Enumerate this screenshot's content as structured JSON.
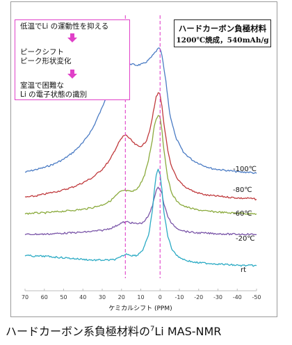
{
  "annotation": {
    "line1": "低温でLi の運動性を抑える",
    "line2": "ピークシフト",
    "line3": "ピーク形状変化",
    "line4": "室温で困難な",
    "line5": "Li の電子状態の識別",
    "arrow_color": "#e040c8"
  },
  "sample": {
    "line1": "ハードカーボン負極材料",
    "line2": "1200℃焼成，540mAh/g"
  },
  "caption": {
    "prefix": "ハードカーボン系負極材料の",
    "mass": "7",
    "suffix": "Li MAS-NMR"
  },
  "chart_data": {
    "type": "line",
    "xlabel": "ケミカルシフト (PPM)",
    "xlim": [
      70,
      -50
    ],
    "xticks": [
      70,
      60,
      50,
      40,
      30,
      20,
      10,
      0,
      -10,
      -20,
      -30,
      -40,
      -50
    ],
    "reference_lines": [
      18,
      0
    ],
    "reference_line_color": "#e040c8",
    "series": [
      {
        "name": "-100℃",
        "color": "#4a7bc4",
        "x": [
          70,
          65,
          60,
          55,
          50,
          45,
          40,
          35,
          30,
          27,
          24,
          21,
          19,
          17,
          15,
          12,
          9,
          7,
          5,
          3,
          1,
          0,
          -1,
          -3,
          -5,
          -8,
          -12,
          -17,
          -22,
          -27,
          -32,
          -37,
          -42,
          -46,
          -50
        ],
        "y": [
          0.05,
          0.07,
          0.09,
          0.12,
          0.16,
          0.22,
          0.3,
          0.42,
          0.6,
          0.74,
          0.86,
          0.94,
          0.97,
          0.98,
          0.97,
          0.96,
          0.97,
          0.99,
          1.02,
          1.06,
          1.1,
          1.1,
          1.04,
          0.82,
          0.55,
          0.35,
          0.22,
          0.15,
          0.11,
          0.08,
          0.07,
          0.06,
          0.05,
          0.05,
          0.04
        ]
      },
      {
        "name": "-80℃",
        "color": "#c0393c",
        "x": [
          70,
          65,
          60,
          55,
          50,
          45,
          40,
          35,
          30,
          26,
          23,
          21,
          19,
          18,
          17,
          15,
          13,
          11,
          9,
          7,
          5,
          3,
          2,
          1,
          0,
          -1,
          -2,
          -4,
          -6,
          -9,
          -13,
          -18,
          -24,
          -30,
          -36,
          -42,
          -46,
          -50
        ],
        "y": [
          0.05,
          0.06,
          0.08,
          0.1,
          0.12,
          0.15,
          0.19,
          0.24,
          0.32,
          0.41,
          0.52,
          0.59,
          0.64,
          0.65,
          0.64,
          0.6,
          0.56,
          0.54,
          0.55,
          0.6,
          0.72,
          0.92,
          1.02,
          1.06,
          1.04,
          0.92,
          0.75,
          0.5,
          0.34,
          0.22,
          0.15,
          0.1,
          0.07,
          0.06,
          0.05,
          0.04,
          0.04,
          0.03
        ]
      },
      {
        "name": "-60℃",
        "color": "#8aaa3c",
        "x": [
          70,
          65,
          60,
          55,
          50,
          45,
          40,
          35,
          30,
          26,
          23,
          21,
          19,
          18,
          16,
          14,
          11,
          8,
          6,
          4,
          3,
          2,
          1,
          0,
          -1,
          -2,
          -4,
          -6,
          -9,
          -13,
          -18,
          -24,
          -30,
          -36,
          -42,
          -46,
          -50
        ],
        "y": [
          0.02,
          0.03,
          0.03,
          0.04,
          0.05,
          0.06,
          0.07,
          0.09,
          0.12,
          0.16,
          0.22,
          0.26,
          0.28,
          0.28,
          0.27,
          0.27,
          0.32,
          0.45,
          0.62,
          0.85,
          1.0,
          1.08,
          1.12,
          1.1,
          0.95,
          0.72,
          0.42,
          0.25,
          0.15,
          0.1,
          0.07,
          0.05,
          0.04,
          0.03,
          0.03,
          0.02,
          0.02
        ]
      },
      {
        "name": "-20℃",
        "color": "#7a55a8",
        "x": [
          70,
          65,
          60,
          55,
          50,
          45,
          40,
          35,
          30,
          26,
          23,
          21,
          19,
          17,
          15,
          12,
          9,
          6,
          4,
          3,
          2,
          1,
          0,
          -1,
          -2,
          -4,
          -6,
          -9,
          -13,
          -18,
          -24,
          -30,
          -36,
          -42,
          -46,
          -50
        ],
        "y": [
          0.01,
          0.02,
          0.02,
          0.03,
          0.04,
          0.05,
          0.06,
          0.08,
          0.1,
          0.14,
          0.19,
          0.24,
          0.27,
          0.28,
          0.26,
          0.24,
          0.26,
          0.4,
          0.62,
          0.8,
          0.94,
          1.0,
          0.98,
          0.88,
          0.65,
          0.4,
          0.24,
          0.14,
          0.08,
          0.05,
          0.04,
          0.03,
          0.02,
          0.02,
          0.02,
          0.01
        ]
      },
      {
        "name": "rt",
        "color": "#2aaac4",
        "x": [
          70,
          65,
          60,
          55,
          50,
          45,
          40,
          35,
          30,
          26,
          23,
          21,
          19,
          17,
          15,
          12,
          9,
          6,
          4,
          3,
          2,
          1,
          0,
          -1,
          -2,
          -4,
          -6,
          -9,
          -13,
          -18,
          -24,
          -30,
          -36,
          -42,
          -46,
          -50
        ],
        "y": [
          0.15,
          0.14,
          0.14,
          0.13,
          0.12,
          0.11,
          0.1,
          0.09,
          0.09,
          0.09,
          0.1,
          0.12,
          0.15,
          0.17,
          0.15,
          0.15,
          0.22,
          0.4,
          0.72,
          0.98,
          1.18,
          1.25,
          1.2,
          0.98,
          0.7,
          0.4,
          0.24,
          0.14,
          0.09,
          0.06,
          0.05,
          0.04,
          0.03,
          0.02,
          0.02,
          0.02
        ]
      }
    ]
  }
}
